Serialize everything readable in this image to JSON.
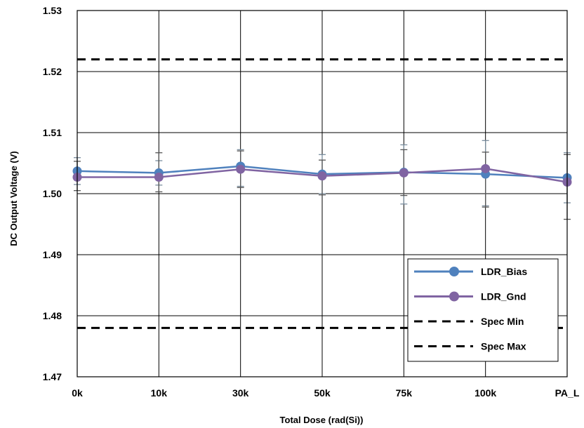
{
  "chart_data": {
    "type": "line",
    "title": "",
    "xlabel": "Total Dose (rad(Si))",
    "ylabel": "DC Output Voltage (V)",
    "categories": [
      "0k",
      "10k",
      "30k",
      "50k",
      "75k",
      "100k",
      "PA_L"
    ],
    "ylim": [
      1.47,
      1.53
    ],
    "yticks": [
      "1.47",
      "1.48",
      "1.49",
      "1.50",
      "1.51",
      "1.52",
      "1.53"
    ],
    "grid": true,
    "legend_position": "bottom-right",
    "series": [
      {
        "name": "LDR_Bias",
        "color": "#4f81bd",
        "marker": "circle",
        "values": [
          1.5037,
          1.5034,
          1.5045,
          1.5032,
          1.5035,
          1.5032,
          1.5026
        ],
        "error_low": [
          1.5015,
          1.5014,
          1.5012,
          1.5,
          1.4983,
          1.498,
          1.4985
        ],
        "error_high": [
          1.5059,
          1.5054,
          1.5072,
          1.5064,
          1.508,
          1.5087,
          1.5067
        ]
      },
      {
        "name": "LDR_Gnd",
        "color": "#8064a2",
        "marker": "circle",
        "values": [
          1.5027,
          1.5027,
          1.504,
          1.5029,
          1.5034,
          1.5041,
          1.5019
        ],
        "error_low": [
          1.5005,
          1.5003,
          1.501,
          1.4998,
          1.4997,
          1.4978,
          1.4958
        ],
        "error_high": [
          1.5053,
          1.5067,
          1.507,
          1.5055,
          1.5072,
          1.5068,
          1.5064
        ]
      },
      {
        "name": "Spec Min",
        "color": "#000000",
        "style": "dashed",
        "constant": 1.478
      },
      {
        "name": "Spec Max",
        "color": "#000000",
        "style": "dashed",
        "constant": 1.522
      }
    ]
  }
}
